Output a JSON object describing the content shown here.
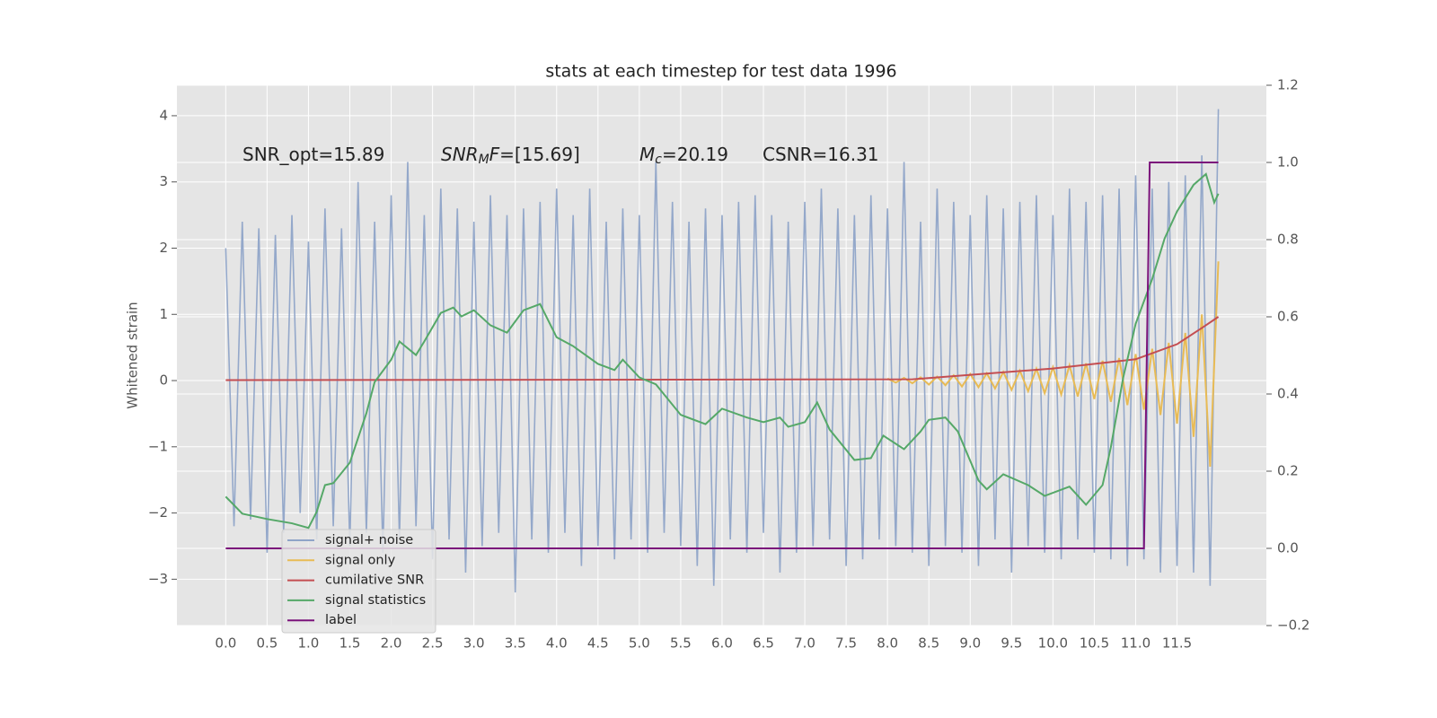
{
  "chart_data": {
    "type": "line",
    "title": "stats at each timestep for test data 1996",
    "y_label": "Whitened strain",
    "xlim": [
      -0.59,
      12.58
    ],
    "xticks": [
      {
        "value": 0,
        "label": "0.0"
      },
      0.5,
      {
        "value": 1,
        "label": "1.0"
      },
      1.5,
      {
        "value": 2,
        "label": "2.0"
      },
      2.5,
      {
        "value": 3,
        "label": "3.0"
      },
      3.5,
      {
        "value": 4,
        "label": "4.0"
      },
      4.5,
      {
        "value": 5,
        "label": "5.0"
      },
      5.5,
      {
        "value": 6,
        "label": "6.0"
      },
      6.5,
      {
        "value": 7,
        "label": "7.0"
      },
      7.5,
      {
        "value": 8,
        "label": "8.0"
      },
      8.5,
      {
        "value": 9,
        "label": "9.0"
      },
      9.5,
      {
        "value": 10,
        "label": "10.0"
      },
      10.5,
      {
        "value": 11,
        "label": "11.0"
      },
      11.5
    ],
    "ylim": [
      -3.7,
      4.46
    ],
    "yticks": [
      {
        "value": -3,
        "label": "−3"
      },
      {
        "value": -2,
        "label": "−2"
      },
      {
        "value": -1,
        "label": "−1"
      },
      0,
      1,
      2,
      3,
      4
    ],
    "y2lim": [
      -0.2,
      1.2
    ],
    "y2ticks": [
      {
        "value": -0.2,
        "label": "−0.2"
      },
      {
        "value": 0,
        "label": "0.0"
      },
      0.2,
      0.4,
      0.6,
      0.8,
      {
        "value": 1,
        "label": "1.0"
      },
      1.2
    ],
    "grid": true,
    "legend": "lower left",
    "annotations": [
      [
        {
          "text": "SNR_opt=15.89"
        }
      ],
      [
        {
          "text": "SNR",
          "style": "italic"
        },
        {
          "text": "M",
          "style": "sub"
        },
        {
          "text": "F",
          "style": "italic"
        },
        {
          "text": "=[15.69]"
        }
      ],
      [
        {
          "text": "M",
          "style": "italic"
        },
        {
          "text": "c",
          "style": "sub"
        },
        {
          "text": "=20.19"
        }
      ],
      [
        {
          "text": "CSNR=16.31"
        }
      ]
    ],
    "series": [
      {
        "name": "signal+ noise",
        "color": "#8fa4c8",
        "x": [
          0.0,
          0.1,
          0.2,
          0.3,
          0.4,
          0.5,
          0.6,
          0.7,
          0.8,
          0.9,
          1.0,
          1.1,
          1.2,
          1.3,
          1.4,
          1.5,
          1.6,
          1.7,
          1.8,
          1.9,
          2.0,
          2.1,
          2.2,
          2.3,
          2.4,
          2.5,
          2.6,
          2.7,
          2.8,
          2.9,
          3.0,
          3.1,
          3.2,
          3.3,
          3.4,
          3.5,
          3.6,
          3.7,
          3.8,
          3.9,
          4.0,
          4.1,
          4.2,
          4.3,
          4.4,
          4.5,
          4.6,
          4.7,
          4.8,
          4.9,
          5.0,
          5.1,
          5.2,
          5.3,
          5.4,
          5.5,
          5.6,
          5.7,
          5.8,
          5.9,
          6.0,
          6.1,
          6.2,
          6.3,
          6.4,
          6.5,
          6.6,
          6.7,
          6.8,
          6.9,
          7.0,
          7.1,
          7.2,
          7.3,
          7.4,
          7.5,
          7.6,
          7.7,
          7.8,
          7.9,
          8.0,
          8.1,
          8.2,
          8.3,
          8.4,
          8.5,
          8.6,
          8.7,
          8.8,
          8.9,
          9.0,
          9.1,
          9.2,
          9.3,
          9.4,
          9.5,
          9.6,
          9.7,
          9.8,
          9.9,
          10.0,
          10.1,
          10.2,
          10.3,
          10.4,
          10.5,
          10.6,
          10.7,
          10.8,
          10.9,
          11.0,
          11.1,
          11.2,
          11.3,
          11.4,
          11.5,
          11.6,
          11.7,
          11.8,
          11.9,
          12.0
        ],
        "values": [
          2.0,
          -2.2,
          2.4,
          -2.1,
          2.3,
          -2.6,
          2.2,
          -2.3,
          2.5,
          -2.0,
          2.1,
          -2.4,
          2.6,
          -2.2,
          2.3,
          -2.5,
          3.0,
          -2.3,
          2.4,
          -2.6,
          2.8,
          -2.4,
          3.3,
          -2.2,
          2.5,
          -2.7,
          2.9,
          -2.4,
          2.6,
          -2.9,
          2.4,
          -2.5,
          2.8,
          -2.3,
          2.5,
          -3.2,
          2.6,
          -2.4,
          2.7,
          -2.6,
          2.9,
          -2.3,
          2.5,
          -2.8,
          2.9,
          -2.5,
          2.4,
          -2.7,
          2.6,
          -2.4,
          2.5,
          -2.6,
          3.3,
          -2.3,
          2.7,
          -2.5,
          2.4,
          -2.8,
          2.6,
          -3.1,
          2.5,
          -2.4,
          2.7,
          -2.6,
          2.8,
          -2.3,
          2.5,
          -2.9,
          2.4,
          -2.6,
          2.7,
          -2.5,
          2.9,
          -2.4,
          2.6,
          -2.8,
          2.5,
          -2.7,
          2.8,
          -2.4,
          2.6,
          -2.5,
          3.3,
          -2.6,
          2.4,
          -2.8,
          2.9,
          -2.5,
          2.7,
          -2.6,
          2.5,
          -2.8,
          2.8,
          -2.4,
          2.6,
          -2.9,
          2.7,
          -2.5,
          2.8,
          -2.6,
          2.5,
          -2.7,
          2.9,
          -2.4,
          2.7,
          -2.6,
          2.8,
          -2.7,
          2.9,
          -2.8,
          3.1,
          -2.7,
          2.9,
          -2.9,
          3.0,
          -2.8,
          3.1,
          -2.9,
          3.4,
          -3.1,
          4.1
        ]
      },
      {
        "name": "signal only",
        "color": "#e8bb55",
        "x": [
          8.0,
          8.1,
          8.2,
          8.3,
          8.4,
          8.5,
          8.6,
          8.7,
          8.8,
          8.9,
          9.0,
          9.1,
          9.2,
          9.3,
          9.4,
          9.5,
          9.6,
          9.7,
          9.8,
          9.9,
          10.0,
          10.1,
          10.2,
          10.3,
          10.4,
          10.5,
          10.6,
          10.7,
          10.8,
          10.9,
          11.0,
          11.1,
          11.2,
          11.3,
          11.4,
          11.5,
          11.6,
          11.7,
          11.8,
          11.9,
          12.0
        ],
        "values": [
          0.03,
          -0.03,
          0.04,
          -0.04,
          0.05,
          -0.06,
          0.06,
          -0.07,
          0.08,
          -0.09,
          0.1,
          -0.1,
          0.11,
          -0.12,
          0.13,
          -0.14,
          0.15,
          -0.16,
          0.18,
          -0.19,
          0.2,
          -0.21,
          0.23,
          -0.24,
          0.26,
          -0.28,
          0.3,
          -0.32,
          0.34,
          -0.37,
          0.4,
          -0.44,
          0.48,
          -0.52,
          0.57,
          -0.65,
          0.72,
          -0.85,
          1.0,
          -1.3,
          1.8
        ]
      },
      {
        "name": "cumilative SNR",
        "color": "#c44e52",
        "axis": "y2",
        "x": [
          0,
          8.3,
          10.0,
          11.0,
          11.5,
          11.8,
          12.0
        ],
        "values": [
          0.436,
          0.438,
          0.466,
          0.49,
          0.529,
          0.571,
          0.6
        ]
      },
      {
        "name": "signal statistics",
        "color": "#55a868",
        "axis": "y2",
        "x": [
          0,
          0.2,
          0.5,
          0.8,
          1.0,
          1.1,
          1.2,
          1.3,
          1.5,
          1.7,
          1.8,
          2.0,
          2.1,
          2.3,
          2.4,
          2.6,
          2.75,
          2.85,
          3.0,
          3.2,
          3.4,
          3.6,
          3.8,
          4.0,
          4.2,
          4.5,
          4.7,
          4.8,
          5.0,
          5.2,
          5.5,
          5.8,
          6.0,
          6.3,
          6.5,
          6.7,
          6.8,
          7.0,
          7.15,
          7.3,
          7.6,
          7.8,
          7.95,
          8.2,
          8.4,
          8.5,
          8.7,
          8.85,
          9.1,
          9.2,
          9.4,
          9.7,
          9.9,
          10.2,
          10.4,
          10.6,
          10.7,
          10.85,
          11.0,
          11.2,
          11.35,
          11.5,
          11.7,
          11.85,
          11.95,
          12.0
        ],
        "values": [
          0.134,
          0.09,
          0.076,
          0.065,
          0.053,
          0.095,
          0.164,
          0.169,
          0.222,
          0.35,
          0.431,
          0.489,
          0.536,
          0.501,
          0.536,
          0.61,
          0.624,
          0.601,
          0.617,
          0.578,
          0.559,
          0.617,
          0.633,
          0.547,
          0.524,
          0.478,
          0.462,
          0.489,
          0.443,
          0.425,
          0.346,
          0.322,
          0.362,
          0.339,
          0.327,
          0.339,
          0.315,
          0.327,
          0.378,
          0.308,
          0.229,
          0.234,
          0.292,
          0.257,
          0.303,
          0.333,
          0.339,
          0.303,
          0.176,
          0.153,
          0.192,
          0.164,
          0.136,
          0.16,
          0.113,
          0.164,
          0.262,
          0.443,
          0.582,
          0.698,
          0.803,
          0.873,
          0.942,
          0.97,
          0.896,
          0.919
        ]
      },
      {
        "name": "label",
        "color": "#7b137b",
        "axis": "y2",
        "x": [
          0,
          11.1,
          11.17,
          12.0
        ],
        "values": [
          0,
          0,
          1,
          1
        ]
      }
    ]
  }
}
